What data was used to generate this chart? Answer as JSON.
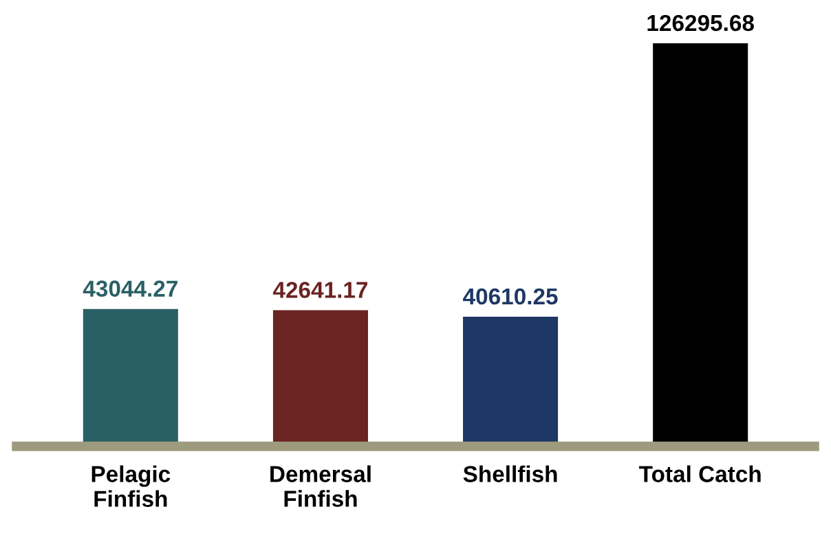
{
  "chart_data": {
    "type": "bar",
    "categories": [
      "Pelagic\nFinfish",
      "Demersal\nFinfish",
      "Shellfish",
      "Total Catch"
    ],
    "values": [
      43044.27,
      42641.17,
      40610.25,
      126295.68
    ],
    "colors": [
      "#2a6065",
      "#6a2422",
      "#1e3764",
      "#000000"
    ],
    "data_labels": true
  }
}
